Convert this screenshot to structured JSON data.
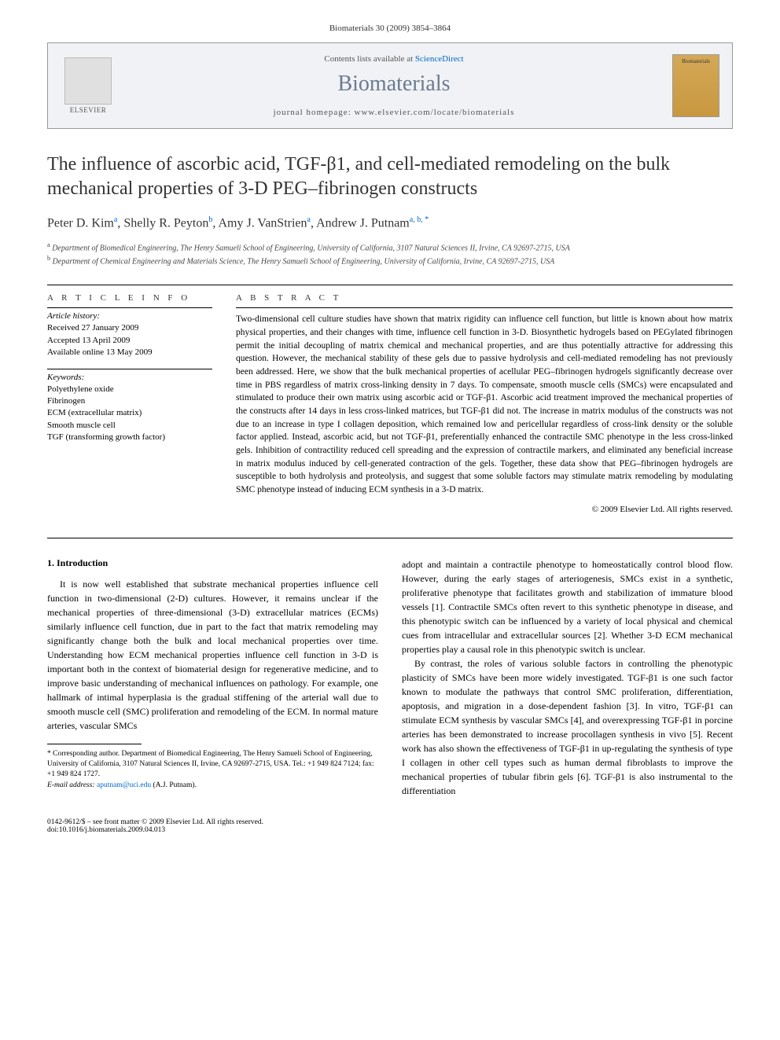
{
  "citation": "Biomaterials 30 (2009) 3854–3864",
  "header": {
    "contents_prefix": "Contents lists available at ",
    "contents_link": "ScienceDirect",
    "journal_name": "Biomaterials",
    "homepage_label": "journal homepage: ",
    "homepage_url": "www.elsevier.com/locate/biomaterials",
    "publisher": "ELSEVIER",
    "cover_label": "Biomaterials"
  },
  "title": "The influence of ascorbic acid, TGF-β1, and cell-mediated remodeling on the bulk mechanical properties of 3-D PEG–fibrinogen constructs",
  "authors": [
    {
      "name": "Peter D. Kim",
      "aff": "a"
    },
    {
      "name": "Shelly R. Peyton",
      "aff": "b"
    },
    {
      "name": "Amy J. VanStrien",
      "aff": "a"
    },
    {
      "name": "Andrew J. Putnam",
      "aff": "a, b, *"
    }
  ],
  "affiliations": {
    "a": "Department of Biomedical Engineering, The Henry Samueli School of Engineering, University of California, 3107 Natural Sciences II, Irvine, CA 92697-2715, USA",
    "b": "Department of Chemical Engineering and Materials Science, The Henry Samueli School of Engineering, University of California, Irvine, CA 92697-2715, USA"
  },
  "article_info": {
    "heading": "A R T I C L E  I N F O",
    "history_heading": "Article history:",
    "history": "Received 27 January 2009\nAccepted 13 April 2009\nAvailable online 13 May 2009",
    "keywords_heading": "Keywords:",
    "keywords": "Polyethylene oxide\nFibrinogen\nECM (extracellular matrix)\nSmooth muscle cell\nTGF (transforming growth factor)"
  },
  "abstract": {
    "heading": "A B S T R A C T",
    "text": "Two-dimensional cell culture studies have shown that matrix rigidity can influence cell function, but little is known about how matrix physical properties, and their changes with time, influence cell function in 3-D. Biosynthetic hydrogels based on PEGylated fibrinogen permit the initial decoupling of matrix chemical and mechanical properties, and are thus potentially attractive for addressing this question. However, the mechanical stability of these gels due to passive hydrolysis and cell-mediated remodeling has not previously been addressed. Here, we show that the bulk mechanical properties of acellular PEG–fibrinogen hydrogels significantly decrease over time in PBS regardless of matrix cross-linking density in 7 days. To compensate, smooth muscle cells (SMCs) were encapsulated and stimulated to produce their own matrix using ascorbic acid or TGF-β1. Ascorbic acid treatment improved the mechanical properties of the constructs after 14 days in less cross-linked matrices, but TGF-β1 did not. The increase in matrix modulus of the constructs was not due to an increase in type I collagen deposition, which remained low and pericellular regardless of cross-link density or the soluble factor applied. Instead, ascorbic acid, but not TGF-β1, preferentially enhanced the contractile SMC phenotype in the less cross-linked gels. Inhibition of contractility reduced cell spreading and the expression of contractile markers, and eliminated any beneficial increase in matrix modulus induced by cell-generated contraction of the gels. Together, these data show that PEG–fibrinogen hydrogels are susceptible to both hydrolysis and proteolysis, and suggest that some soluble factors may stimulate matrix remodeling by modulating SMC phenotype instead of inducing ECM synthesis in a 3-D matrix.",
    "copyright": "© 2009 Elsevier Ltd. All rights reserved."
  },
  "body": {
    "section_heading": "1. Introduction",
    "col1_p1": "It is now well established that substrate mechanical properties influence cell function in two-dimensional (2-D) cultures. However, it remains unclear if the mechanical properties of three-dimensional (3-D) extracellular matrices (ECMs) similarly influence cell function, due in part to the fact that matrix remodeling may significantly change both the bulk and local mechanical properties over time. Understanding how ECM mechanical properties influence cell function in 3-D is important both in the context of biomaterial design for regenerative medicine, and to improve basic understanding of mechanical influences on pathology. For example, one hallmark of intimal hyperplasia is the gradual stiffening of the arterial wall due to smooth muscle cell (SMC) proliferation and remodeling of the ECM. In normal mature arteries, vascular SMCs",
    "col2_p1": "adopt and maintain a contractile phenotype to homeostatically control blood flow. However, during the early stages of arteriogenesis, SMCs exist in a synthetic, proliferative phenotype that facilitates growth and stabilization of immature blood vessels [1]. Contractile SMCs often revert to this synthetic phenotype in disease, and this phenotypic switch can be influenced by a variety of local physical and chemical cues from intracellular and extracellular sources [2]. Whether 3-D ECM mechanical properties play a causal role in this phenotypic switch is unclear.",
    "col2_p2": "By contrast, the roles of various soluble factors in controlling the phenotypic plasticity of SMCs have been more widely investigated. TGF-β1 is one such factor known to modulate the pathways that control SMC proliferation, differentiation, apoptosis, and migration in a dose-dependent fashion [3]. In vitro, TGF-β1 can stimulate ECM synthesis by vascular SMCs [4], and overexpressing TGF-β1 in porcine arteries has been demonstrated to increase procollagen synthesis in vivo [5]. Recent work has also shown the effectiveness of TGF-β1 in up-regulating the synthesis of type I collagen in other cell types such as human dermal fibroblasts to improve the mechanical properties of tubular fibrin gels [6]. TGF-β1 is also instrumental to the differentiation"
  },
  "footnote": {
    "corr": "* Corresponding author. Department of Biomedical Engineering, The Henry Samueli School of Engineering, University of California, 3107 Natural Sciences II, Irvine, CA 92697-2715, USA. Tel.: +1 949 824 7124; fax: +1 949 824 1727.",
    "email_label": "E-mail address: ",
    "email": "aputnam@uci.edu",
    "email_suffix": " (A.J. Putnam)."
  },
  "bottom": {
    "left": "0142-9612/$ – see front matter © 2009 Elsevier Ltd. All rights reserved.\ndoi:10.1016/j.biomaterials.2009.04.013"
  },
  "colors": {
    "link": "#0066cc",
    "journal_name": "#6b7a8f",
    "header_bg": "#f0f2f5",
    "cover_bg": "#d4a857"
  }
}
